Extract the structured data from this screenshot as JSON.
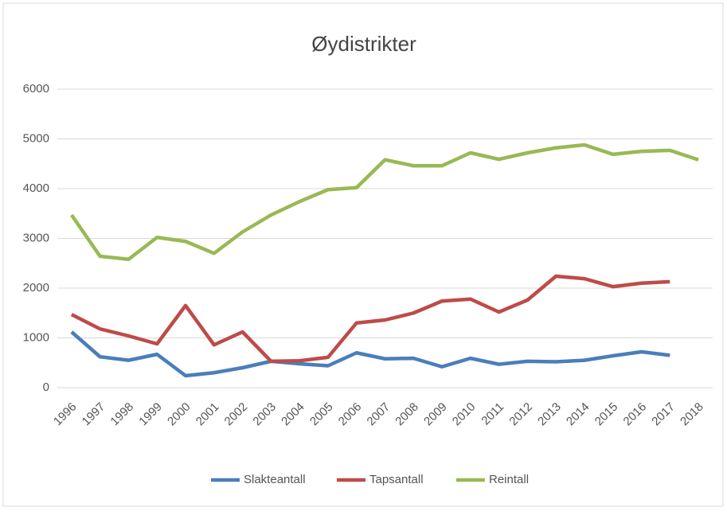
{
  "chart_data": {
    "type": "line",
    "title": "Øydistrikter",
    "categories": [
      "1996",
      "1997",
      "1998",
      "1999",
      "2000",
      "2001",
      "2002",
      "2003",
      "2004",
      "2005",
      "2006",
      "2007",
      "2008",
      "2009",
      "2010",
      "2011",
      "2012",
      "2013",
      "2014",
      "2015",
      "2016",
      "2017",
      "2018"
    ],
    "series": [
      {
        "name": "Slakteantall",
        "color": "#4a7ebb",
        "values": [
          1120,
          620,
          550,
          670,
          240,
          300,
          400,
          530,
          480,
          440,
          700,
          580,
          590,
          420,
          590,
          470,
          530,
          520,
          550,
          640,
          720,
          650,
          null
        ]
      },
      {
        "name": "Tapsantall",
        "color": "#be4b48",
        "values": [
          1470,
          1180,
          1040,
          880,
          1650,
          860,
          1120,
          530,
          540,
          610,
          1300,
          1360,
          1500,
          1740,
          1780,
          1520,
          1760,
          2240,
          2190,
          2030,
          2100,
          2130,
          null
        ]
      },
      {
        "name": "Reintall",
        "color": "#98b954",
        "values": [
          3470,
          2640,
          2580,
          3020,
          2940,
          2700,
          3130,
          3470,
          3740,
          3980,
          4020,
          4580,
          4460,
          4460,
          4720,
          4590,
          4720,
          4820,
          4880,
          4690,
          4750,
          4770,
          4580
        ]
      }
    ],
    "ylim": [
      0,
      6000
    ],
    "yticks": [
      0,
      1000,
      2000,
      3000,
      4000,
      5000,
      6000
    ],
    "grid": true,
    "legend": "bottom"
  }
}
